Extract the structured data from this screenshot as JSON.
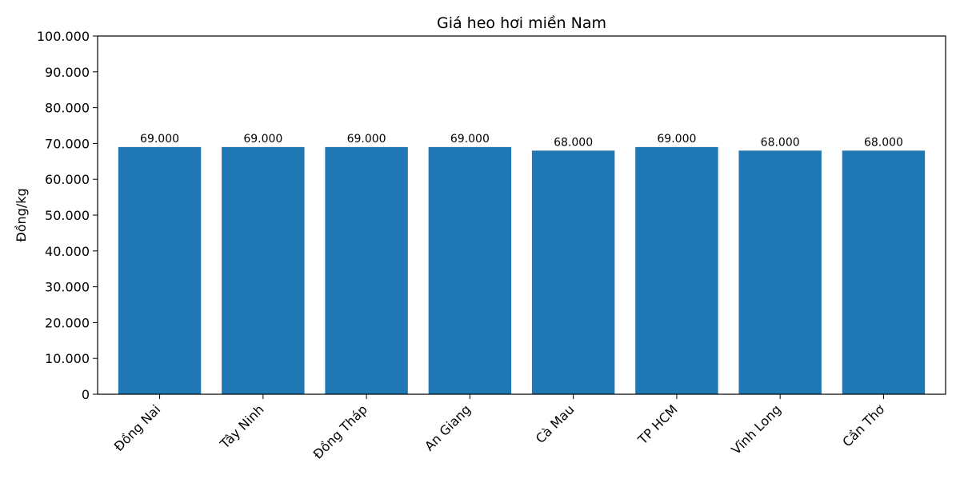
{
  "chart_data": {
    "type": "bar",
    "title": "Giá heo hơi miền Nam",
    "xlabel": "",
    "ylabel": "Đồng/kg",
    "categories": [
      "Đồng Nai",
      "Tây Ninh",
      "Đồng Tháp",
      "An Giang",
      "Cà Mau",
      "TP HCM",
      "Vĩnh Long",
      "Cần Thơ"
    ],
    "values": [
      69000,
      69000,
      69000,
      69000,
      68000,
      69000,
      68000,
      68000
    ],
    "value_labels": [
      "69.000",
      "69.000",
      "69.000",
      "69.000",
      "68.000",
      "69.000",
      "68.000",
      "68.000"
    ],
    "ylim": [
      0,
      100000
    ],
    "yticks": [
      0,
      10000,
      20000,
      30000,
      40000,
      50000,
      60000,
      70000,
      80000,
      90000,
      100000
    ],
    "ytick_labels": [
      "0",
      "10.000",
      "20.000",
      "30.000",
      "40.000",
      "50.000",
      "60.000",
      "70.000",
      "80.000",
      "90.000",
      "100.000"
    ],
    "bar_color": "#1f77b4",
    "grid": false,
    "legend": "none"
  }
}
